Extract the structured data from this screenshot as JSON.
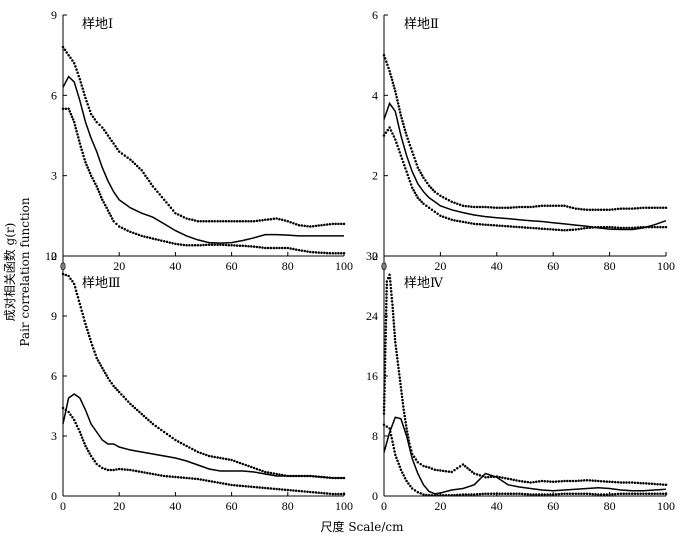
{
  "figure": {
    "ylabel_line1": "成对相关函数 g(r)",
    "ylabel_line2": "Pair correlation function",
    "xlabel": "尺度 Scale/cm"
  },
  "chart_data": [
    {
      "type": "line",
      "title": "样地Ⅰ",
      "xlim": [
        0,
        100
      ],
      "ylim": [
        0,
        9
      ],
      "xticks": [
        0,
        20,
        40,
        60,
        80,
        100
      ],
      "yticks": [
        0,
        3,
        6,
        9
      ],
      "grid": false,
      "series": [
        {
          "style": "solid",
          "x": [
            0,
            2,
            4,
            6,
            8,
            10,
            12,
            14,
            16,
            18,
            20,
            24,
            28,
            32,
            36,
            40,
            44,
            48,
            52,
            56,
            60,
            64,
            68,
            72,
            76,
            80,
            84,
            88,
            92,
            96,
            100
          ],
          "y": [
            6.3,
            6.7,
            6.5,
            5.8,
            5.0,
            4.4,
            3.9,
            3.3,
            2.8,
            2.4,
            2.1,
            1.8,
            1.6,
            1.45,
            1.2,
            0.95,
            0.75,
            0.6,
            0.5,
            0.48,
            0.5,
            0.58,
            0.68,
            0.8,
            0.8,
            0.78,
            0.75,
            0.75,
            0.75,
            0.75,
            0.75
          ]
        },
        {
          "style": "dotted",
          "x": [
            0,
            2,
            4,
            6,
            8,
            10,
            12,
            14,
            16,
            18,
            20,
            24,
            28,
            32,
            36,
            40,
            44,
            48,
            52,
            56,
            60,
            64,
            68,
            72,
            76,
            80,
            84,
            88,
            92,
            96,
            100
          ],
          "y": [
            7.8,
            7.5,
            7.2,
            6.6,
            5.9,
            5.3,
            5.0,
            4.8,
            4.5,
            4.2,
            3.9,
            3.6,
            3.2,
            2.6,
            2.1,
            1.6,
            1.4,
            1.3,
            1.3,
            1.3,
            1.3,
            1.3,
            1.3,
            1.35,
            1.4,
            1.3,
            1.15,
            1.1,
            1.15,
            1.2,
            1.2
          ]
        },
        {
          "style": "dotted",
          "x": [
            0,
            2,
            4,
            6,
            8,
            10,
            12,
            14,
            16,
            18,
            20,
            24,
            28,
            32,
            36,
            40,
            44,
            48,
            52,
            56,
            60,
            64,
            68,
            72,
            76,
            80,
            84,
            88,
            92,
            96,
            100
          ],
          "y": [
            5.5,
            5.5,
            5.0,
            4.2,
            3.5,
            3.0,
            2.6,
            2.1,
            1.7,
            1.3,
            1.1,
            0.9,
            0.75,
            0.65,
            0.55,
            0.45,
            0.4,
            0.4,
            0.42,
            0.42,
            0.4,
            0.38,
            0.35,
            0.3,
            0.3,
            0.3,
            0.22,
            0.15,
            0.12,
            0.1,
            0.1
          ]
        }
      ]
    },
    {
      "type": "line",
      "title": "样地Ⅱ",
      "xlim": [
        0,
        100
      ],
      "ylim": [
        0,
        6
      ],
      "xticks": [
        0,
        20,
        40,
        60,
        80,
        100
      ],
      "yticks": [
        0,
        2,
        4,
        6
      ],
      "grid": false,
      "series": [
        {
          "style": "solid",
          "x": [
            0,
            2,
            4,
            6,
            8,
            10,
            12,
            14,
            16,
            18,
            20,
            24,
            28,
            32,
            36,
            40,
            44,
            48,
            52,
            56,
            60,
            64,
            68,
            72,
            76,
            80,
            84,
            88,
            92,
            96,
            100
          ],
          "y": [
            3.4,
            3.8,
            3.6,
            3.0,
            2.5,
            2.1,
            1.8,
            1.6,
            1.45,
            1.35,
            1.25,
            1.15,
            1.08,
            1.02,
            0.98,
            0.95,
            0.93,
            0.9,
            0.88,
            0.86,
            0.83,
            0.8,
            0.77,
            0.74,
            0.7,
            0.67,
            0.66,
            0.66,
            0.7,
            0.78,
            0.88
          ]
        },
        {
          "style": "dotted",
          "x": [
            0,
            2,
            4,
            6,
            8,
            10,
            12,
            14,
            16,
            18,
            20,
            24,
            28,
            32,
            36,
            40,
            44,
            48,
            52,
            56,
            60,
            64,
            68,
            72,
            76,
            80,
            84,
            88,
            92,
            96,
            100
          ],
          "y": [
            5.0,
            4.6,
            4.1,
            3.5,
            3.0,
            2.6,
            2.2,
            1.95,
            1.75,
            1.6,
            1.5,
            1.35,
            1.25,
            1.22,
            1.22,
            1.2,
            1.2,
            1.22,
            1.22,
            1.25,
            1.25,
            1.25,
            1.18,
            1.15,
            1.15,
            1.15,
            1.18,
            1.18,
            1.2,
            1.2,
            1.2
          ]
        },
        {
          "style": "dotted",
          "x": [
            0,
            2,
            4,
            6,
            8,
            10,
            12,
            14,
            16,
            18,
            20,
            24,
            28,
            32,
            36,
            40,
            44,
            48,
            52,
            56,
            60,
            64,
            68,
            72,
            76,
            80,
            84,
            88,
            92,
            96,
            100
          ],
          "y": [
            3.0,
            3.2,
            2.9,
            2.5,
            2.1,
            1.7,
            1.45,
            1.3,
            1.2,
            1.1,
            1.0,
            0.9,
            0.85,
            0.8,
            0.78,
            0.76,
            0.74,
            0.72,
            0.7,
            0.68,
            0.66,
            0.64,
            0.66,
            0.7,
            0.72,
            0.72,
            0.7,
            0.7,
            0.72,
            0.72,
            0.72
          ]
        }
      ]
    },
    {
      "type": "line",
      "title": "样地Ⅲ",
      "xlim": [
        0,
        100
      ],
      "ylim": [
        0,
        12
      ],
      "xticks": [
        0,
        20,
        40,
        60,
        80,
        100
      ],
      "yticks": [
        0,
        3,
        6,
        9,
        12
      ],
      "grid": false,
      "series": [
        {
          "style": "solid",
          "x": [
            0,
            2,
            4,
            6,
            8,
            10,
            12,
            14,
            16,
            18,
            20,
            24,
            28,
            32,
            36,
            40,
            44,
            48,
            52,
            56,
            60,
            64,
            68,
            72,
            76,
            80,
            84,
            88,
            92,
            96,
            100
          ],
          "y": [
            3.6,
            4.9,
            5.1,
            4.9,
            4.3,
            3.6,
            3.2,
            2.8,
            2.6,
            2.6,
            2.45,
            2.3,
            2.2,
            2.1,
            2.0,
            1.9,
            1.75,
            1.55,
            1.35,
            1.25,
            1.25,
            1.25,
            1.2,
            1.1,
            1.0,
            1.0,
            1.0,
            1.0,
            0.95,
            0.9,
            0.9
          ]
        },
        {
          "style": "dotted",
          "x": [
            0,
            2,
            4,
            6,
            8,
            10,
            12,
            14,
            16,
            18,
            20,
            24,
            28,
            32,
            36,
            40,
            44,
            48,
            52,
            56,
            60,
            64,
            68,
            72,
            76,
            80,
            84,
            88,
            92,
            96,
            100
          ],
          "y": [
            11.1,
            11.0,
            10.6,
            9.6,
            8.6,
            7.7,
            6.9,
            6.4,
            5.9,
            5.5,
            5.2,
            4.6,
            4.1,
            3.6,
            3.2,
            2.8,
            2.5,
            2.2,
            2.0,
            1.9,
            1.8,
            1.6,
            1.4,
            1.2,
            1.1,
            1.0,
            1.0,
            1.0,
            0.95,
            0.9,
            0.9
          ]
        },
        {
          "style": "dotted",
          "x": [
            0,
            2,
            4,
            6,
            8,
            10,
            12,
            14,
            16,
            18,
            20,
            24,
            28,
            32,
            36,
            40,
            44,
            48,
            52,
            56,
            60,
            64,
            68,
            72,
            76,
            80,
            84,
            88,
            92,
            96,
            100
          ],
          "y": [
            4.4,
            4.2,
            3.8,
            3.2,
            2.5,
            2.0,
            1.6,
            1.4,
            1.3,
            1.3,
            1.35,
            1.3,
            1.2,
            1.1,
            1.0,
            0.95,
            0.9,
            0.85,
            0.75,
            0.65,
            0.55,
            0.5,
            0.45,
            0.4,
            0.35,
            0.3,
            0.25,
            0.2,
            0.15,
            0.1,
            0.1
          ]
        }
      ]
    },
    {
      "type": "line",
      "title": "样地Ⅳ",
      "xlim": [
        0,
        100
      ],
      "ylim": [
        0,
        32
      ],
      "xticks": [
        0,
        20,
        40,
        60,
        80,
        100
      ],
      "yticks": [
        0,
        8,
        16,
        24,
        32
      ],
      "grid": false,
      "series": [
        {
          "style": "solid",
          "x": [
            0,
            2,
            4,
            6,
            8,
            10,
            12,
            14,
            16,
            18,
            20,
            24,
            28,
            32,
            36,
            40,
            44,
            48,
            52,
            56,
            60,
            64,
            68,
            72,
            76,
            80,
            84,
            88,
            92,
            96,
            100
          ],
          "y": [
            5.8,
            8.5,
            10.5,
            10.3,
            8.0,
            5.0,
            3.0,
            1.5,
            0.6,
            0.3,
            0.4,
            0.8,
            1.0,
            1.5,
            3.0,
            2.5,
            1.5,
            1.2,
            1.0,
            0.8,
            0.7,
            0.8,
            0.9,
            1.0,
            1.1,
            1.0,
            0.8,
            0.7,
            0.7,
            0.8,
            0.9
          ]
        },
        {
          "style": "dotted",
          "x": [
            0,
            1,
            2,
            3,
            4,
            5,
            6,
            7,
            8,
            9,
            10,
            12,
            14,
            16,
            18,
            20,
            24,
            28,
            32,
            36,
            40,
            44,
            48,
            52,
            56,
            60,
            64,
            68,
            72,
            76,
            80,
            84,
            88,
            92,
            96,
            100
          ],
          "y": [
            11.0,
            28.6,
            29.5,
            25.5,
            20.5,
            17.5,
            14.5,
            11.5,
            9.0,
            7.0,
            5.6,
            4.5,
            4.0,
            3.8,
            3.5,
            3.4,
            3.2,
            4.2,
            3.0,
            2.5,
            2.6,
            2.3,
            2.0,
            1.8,
            2.0,
            1.9,
            2.0,
            2.0,
            2.1,
            2.0,
            1.9,
            1.8,
            1.8,
            1.7,
            1.6,
            1.5
          ]
        },
        {
          "style": "dotted",
          "x": [
            0,
            2,
            4,
            6,
            8,
            10,
            12,
            14,
            16,
            18,
            20,
            24,
            28,
            32,
            36,
            40,
            44,
            48,
            52,
            56,
            60,
            64,
            68,
            72,
            76,
            80,
            84,
            88,
            92,
            96,
            100
          ],
          "y": [
            9.5,
            9.0,
            5.5,
            3.5,
            2.0,
            1.0,
            0.5,
            0.2,
            0.1,
            0.1,
            0.1,
            0.1,
            0.2,
            0.2,
            0.3,
            0.3,
            0.3,
            0.3,
            0.2,
            0.2,
            0.2,
            0.3,
            0.3,
            0.3,
            0.2,
            0.2,
            0.3,
            0.3,
            0.3,
            0.3,
            0.3
          ]
        }
      ]
    }
  ]
}
